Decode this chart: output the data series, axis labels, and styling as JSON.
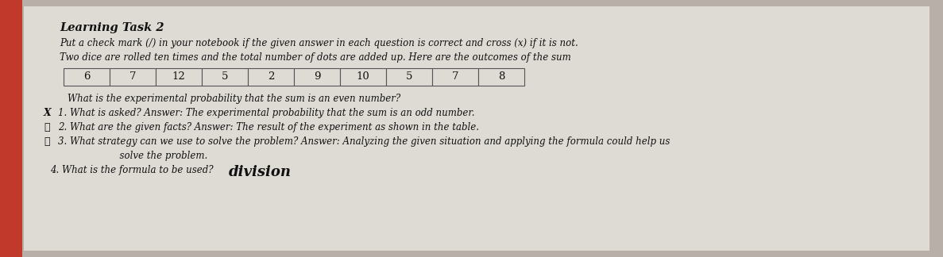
{
  "background_color": "#b8b0a8",
  "paper_color": "#dedad4",
  "left_stripe_color": "#c0392b",
  "title": "Learning Task 2",
  "subtitle1": "Put a check mark (/) in your notebook if the given answer in each question is correct and cross (x) if it is not.",
  "subtitle2": "Two dice are rolled ten times and the total number of dots are added up. Here are the outcomes of the sum",
  "table_values": [
    "6",
    "7",
    "12",
    "5",
    "2",
    "9",
    "10",
    "5",
    "7",
    "8"
  ],
  "question": "What is the experimental probability that the sum is an even number?",
  "line1_marker": "X",
  "line1_text": "1. What is asked? Answer: The experimental probability that the sum is an odd number.",
  "line2_marker": "✓",
  "line2_text": "2. What are the given facts? Answer: The result of the experiment as shown in the table.",
  "line3_marker": "✓",
  "line3_text": "3. What strategy can we use to solve the problem? Answer: Analyzing the given situation and applying the formula could help us",
  "line3b_text": "      solve the problem.",
  "line4_text": "4. What is the formula to be used?",
  "line4_answer": "division",
  "font_family": "DejaVu Serif",
  "title_fontsize": 10.5,
  "body_fontsize": 8.5,
  "table_fontsize": 9.5,
  "division_fontsize": 13
}
